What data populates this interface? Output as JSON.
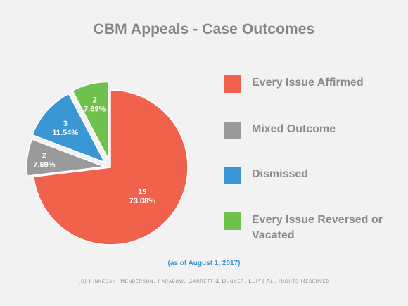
{
  "header": {
    "title": "CBM Appeals - Case Outcomes"
  },
  "chart_data": {
    "type": "pie",
    "title": "CBM Appeals - Case Outcomes",
    "slices": [
      {
        "name": "Every Issue Affirmed",
        "value": 19,
        "percent_label": "73.08%",
        "color": "#f0624b"
      },
      {
        "name": "Mixed Outcome",
        "value": 2,
        "percent_label": "7.69%",
        "color": "#9a9a9a"
      },
      {
        "name": "Dismissed",
        "value": 3,
        "percent_label": "11.54%",
        "color": "#3a97d4"
      },
      {
        "name": "Every Issue Reversed or Vacated",
        "value": 2,
        "percent_label": "7.69%",
        "color": "#6fc04d"
      }
    ],
    "legend_position": "right"
  },
  "legend": {
    "items": [
      {
        "label": "Every Issue Affirmed",
        "color": "#f0624b"
      },
      {
        "label": "Mixed Outcome",
        "color": "#9a9a9a"
      },
      {
        "label": "Dismissed",
        "color": "#3a97d4"
      },
      {
        "label": "Every Issue Reversed or Vacated",
        "color": "#6fc04d"
      }
    ]
  },
  "footer": {
    "note": "(as of August 1, 2017)",
    "copyright": "(c) Finnegan, Henderson, Farabow, Garrett & Dunner, LLP | All Rights Reserved"
  }
}
